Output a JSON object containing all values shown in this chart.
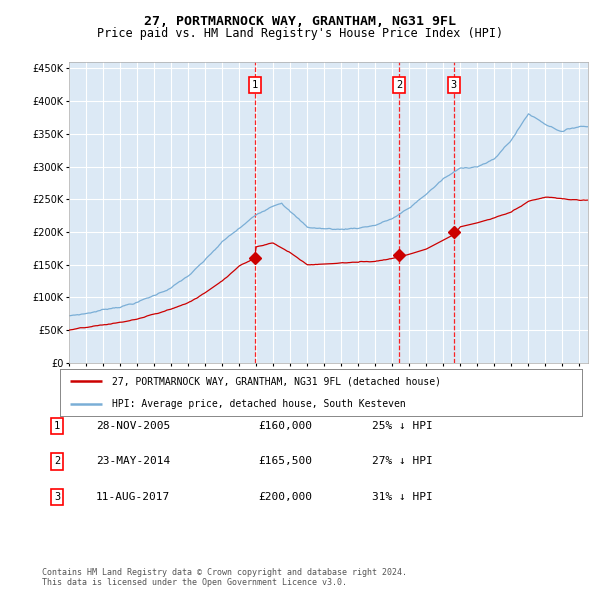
{
  "title": "27, PORTMARNOCK WAY, GRANTHAM, NG31 9FL",
  "subtitle": "Price paid vs. HM Land Registry's House Price Index (HPI)",
  "legend_red": "27, PORTMARNOCK WAY, GRANTHAM, NG31 9FL (detached house)",
  "legend_blue": "HPI: Average price, detached house, South Kesteven",
  "footnote1": "Contains HM Land Registry data © Crown copyright and database right 2024.",
  "footnote2": "This data is licensed under the Open Government Licence v3.0.",
  "transactions": [
    {
      "num": 1,
      "date": "28-NOV-2005",
      "price": 160000,
      "pct": "25%",
      "dir": "↓"
    },
    {
      "num": 2,
      "date": "23-MAY-2014",
      "price": 165500,
      "pct": "27%",
      "dir": "↓"
    },
    {
      "num": 3,
      "date": "11-AUG-2017",
      "price": 200000,
      "pct": "31%",
      "dir": "↓"
    }
  ],
  "transaction_dates_decimal": [
    2005.91,
    2014.39,
    2017.61
  ],
  "transaction_prices": [
    160000,
    165500,
    200000
  ],
  "ylim": [
    0,
    460000
  ],
  "xlim_start": 1995.0,
  "xlim_end": 2025.5,
  "background_color": "#ffffff",
  "plot_bg_color": "#dce9f5",
  "grid_color": "#ffffff",
  "red_color": "#cc0000",
  "blue_color": "#7aaed6",
  "title_fontsize": 9.5,
  "subtitle_fontsize": 8.5
}
